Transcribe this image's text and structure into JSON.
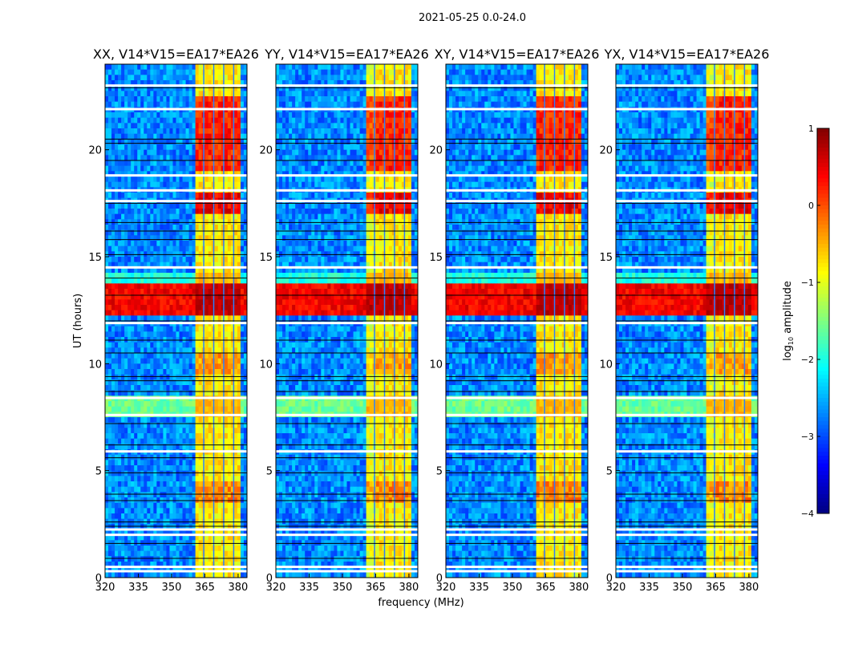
{
  "chart_data": {
    "type": "heatmap",
    "suptitle": "2021-05-25 0.0-24.0",
    "panels": [
      {
        "title": "XX, V14*V15=EA17*EA26",
        "ylabel": "UT (hours)"
      },
      {
        "title": "YY, V14*V15=EA17*EA26",
        "xlabel": "frequency (MHz)"
      },
      {
        "title": "XY, V14*V15=EA17*EA26"
      },
      {
        "title": "YX, V14*V15=EA17*EA26"
      }
    ],
    "xlim": [
      320,
      384
    ],
    "ylim": [
      0,
      24
    ],
    "xticks": [
      "320",
      "335",
      "350",
      "365",
      "380"
    ],
    "xtick_values": [
      320,
      335,
      350,
      365,
      380
    ],
    "yticks": [
      "0",
      "5",
      "10",
      "15",
      "20"
    ],
    "ytick_values": [
      0,
      5,
      10,
      15,
      20
    ],
    "colorbar": {
      "label_main": "log",
      "label_sub": "10",
      "label_rest": " amplitude",
      "range": [
        -4,
        1
      ],
      "ticks": [
        "1",
        "0",
        "−1",
        "−2",
        "−3",
        "−4"
      ],
      "tick_values": [
        1,
        0,
        -1,
        -2,
        -3,
        -4
      ],
      "colormap": "jet"
    },
    "background_level": -2.7,
    "rfi_band_mhz": [
      360.5,
      380.5
    ],
    "rfi_band_level": -0.8,
    "subband_gaps_mhz": [
      364.5,
      369,
      373.5,
      378
    ],
    "row_levels": [
      {
        "hours": [
          7.4,
          8.6
        ],
        "level": -1.6
      },
      {
        "hours": [
          12.2,
          13.8
        ],
        "level": 0.4
      },
      {
        "hours": [
          13.8,
          14.3
        ],
        "level": -2.0
      },
      {
        "hours": [
          17.0,
          18.0
        ],
        "band_level": 0.4
      },
      {
        "hours": [
          19.0,
          22.5
        ],
        "band_level": 0.2
      },
      {
        "hours": [
          3.5,
          4.5
        ],
        "band_level": -0.3
      },
      {
        "hours": [
          9.6,
          10.6
        ],
        "band_level": -0.4
      }
    ],
    "flagged_hours": [
      0.3,
      0.5,
      2.0,
      2.25,
      5.9,
      7.6,
      8.4,
      11.9,
      14.5,
      17.6,
      18.1,
      18.8,
      21.9,
      23.0
    ],
    "dark_line_hours": [
      0.9,
      1.6,
      2.4,
      2.6,
      3.6,
      3.9,
      4.9,
      5.6,
      6.2,
      7.2,
      8.7,
      9.2,
      9.4,
      10.5,
      11.1,
      12.0,
      13.2,
      14.0,
      15.1,
      15.8,
      16.2,
      16.6,
      17.5,
      19.5,
      20.3,
      20.5,
      22.9
    ]
  }
}
